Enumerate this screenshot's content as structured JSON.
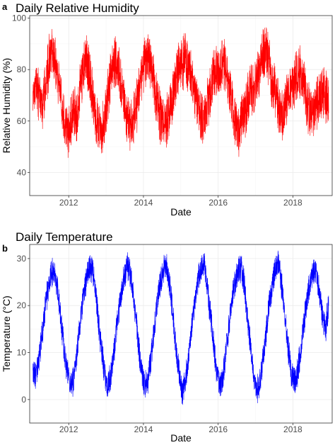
{
  "chart_data": [
    {
      "panel": "a",
      "type": "line",
      "title": "Daily Relative Humidity",
      "xlabel": "Date",
      "ylabel": "Relative Humidity (%)",
      "x_ticks": [
        "2012",
        "2014",
        "2016",
        "2018"
      ],
      "y_ticks": [
        "40",
        "60",
        "80",
        "100"
      ],
      "xlim": [
        "2010-12-15",
        "2019-01-20"
      ],
      "ylim": [
        31,
        101
      ],
      "grid": true,
      "series": [
        {
          "color": "#ff0000",
          "x_start": "2011-01",
          "x_step": "1 month",
          "values": [
            70,
            74,
            68,
            66,
            72,
            82,
            88,
            84,
            78,
            70,
            60,
            56,
            58,
            64,
            60,
            72,
            80,
            84,
            80,
            72,
            64,
            58,
            56,
            60,
            70,
            78,
            84,
            82,
            76,
            70,
            62,
            58,
            60,
            64,
            70,
            78,
            82,
            86,
            80,
            74,
            68,
            62,
            58,
            60,
            64,
            70,
            78,
            82,
            82,
            84,
            80,
            76,
            70,
            66,
            62,
            62,
            66,
            72,
            78,
            80,
            80,
            84,
            80,
            74,
            66,
            58,
            56,
            60,
            64,
            68,
            72,
            74,
            76,
            80,
            86,
            88,
            82,
            74,
            70,
            66,
            62,
            66,
            70,
            74,
            74,
            80,
            78,
            74,
            68,
            64,
            62,
            66,
            70,
            72,
            70,
            68
          ]
        }
      ]
    },
    {
      "panel": "b",
      "type": "line",
      "title": "Daily Temperature",
      "xlabel": "Date",
      "ylabel": "Temperature (°C)",
      "x_ticks": [
        "2012",
        "2014",
        "2016",
        "2018"
      ],
      "y_ticks": [
        "0",
        "10",
        "20",
        "30"
      ],
      "xlim": [
        "2010-12-15",
        "2019-01-20"
      ],
      "ylim": [
        -5,
        33
      ],
      "grid": true,
      "series": [
        {
          "color": "#0000ff",
          "x_start": "2011-01",
          "x_step": "1 month",
          "values": [
            6,
            5,
            9,
            14,
            20,
            24,
            27,
            27,
            23,
            17,
            11,
            6,
            3,
            4,
            9,
            15,
            21,
            25,
            28,
            28,
            24,
            17,
            11,
            6,
            3,
            5,
            10,
            16,
            21,
            25,
            28,
            28,
            24,
            18,
            11,
            6,
            3,
            4,
            9,
            15,
            21,
            25,
            28,
            28,
            24,
            18,
            11,
            5,
            2,
            4,
            9,
            15,
            21,
            25,
            28,
            29,
            24,
            18,
            12,
            6,
            3,
            5,
            10,
            16,
            22,
            25,
            28,
            28,
            24,
            17,
            11,
            5,
            2,
            4,
            9,
            15,
            21,
            25,
            28,
            29,
            24,
            18,
            11,
            6,
            4,
            6,
            10,
            16,
            21,
            25,
            27,
            27,
            23,
            18,
            15,
            20
          ]
        }
      ]
    }
  ]
}
